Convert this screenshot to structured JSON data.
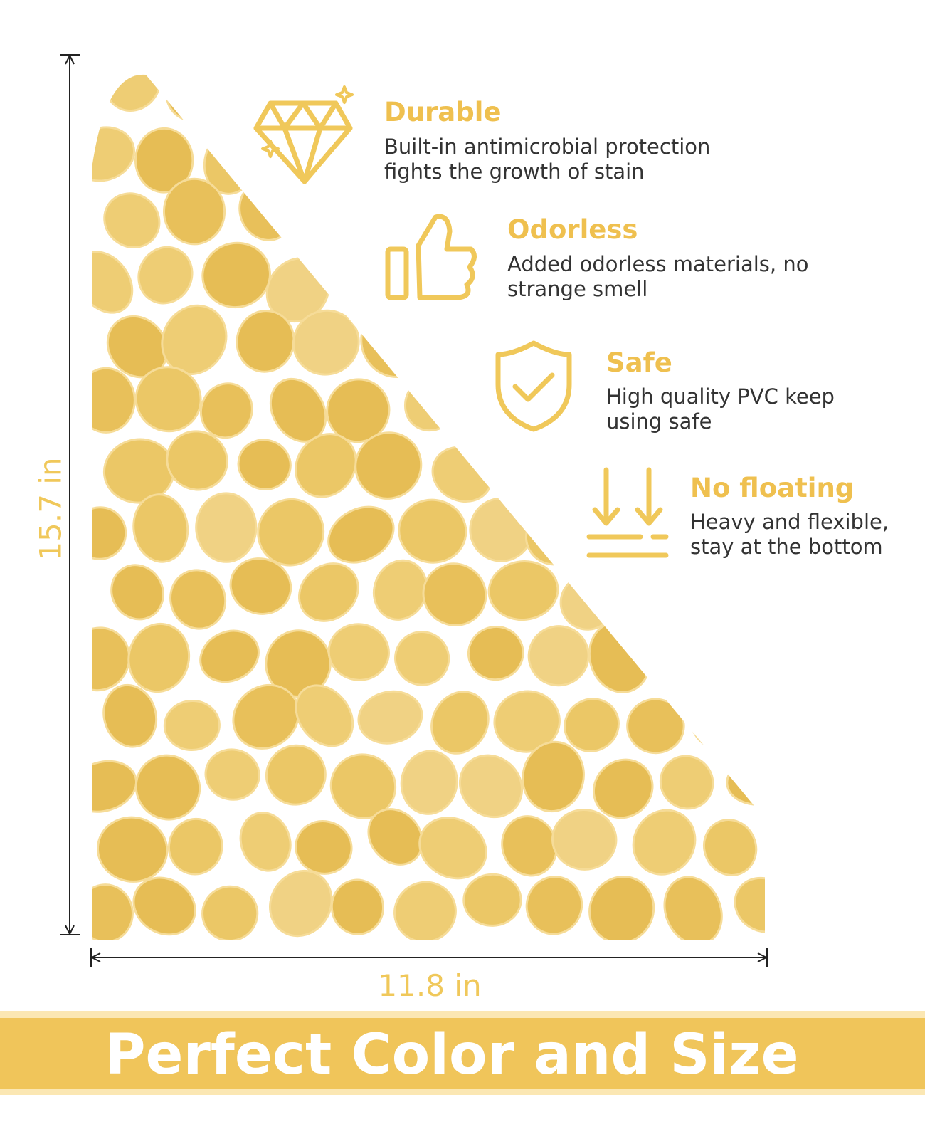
{
  "dimensions": {
    "height": "15.7 in",
    "width": "11.8 in"
  },
  "features": [
    {
      "title": "Durable",
      "desc": [
        "Built-in antimicrobial protection",
        "fights the growth of stain"
      ]
    },
    {
      "title": "Odorless",
      "desc": [
        "Added odorless materials, no",
        "strange smell"
      ]
    },
    {
      "title": "Safe",
      "desc": [
        "High quality PVC keep",
        "using safe"
      ]
    },
    {
      "title": "No floating",
      "desc": [
        "Heavy and flexible,",
        "stay at the bottom"
      ]
    }
  ],
  "banner": "Perfect Color and Size"
}
